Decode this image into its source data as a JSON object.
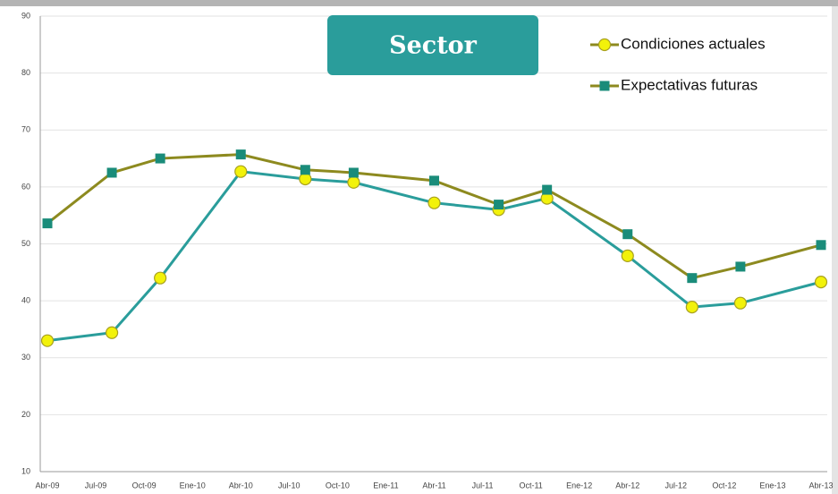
{
  "chart_data": {
    "type": "line",
    "title": "Sector",
    "categories": [
      "Abr-09",
      null,
      null,
      "Jul-09",
      null,
      null,
      "Oct-09",
      null,
      null,
      "Ene-10",
      null,
      null,
      "Abr-10",
      null,
      null,
      "Jul-10",
      null,
      null,
      "Oct-10",
      null,
      null,
      "Ene-11",
      null,
      null,
      "Abr-11",
      null,
      null,
      "Jul-11",
      null,
      null,
      "Oct-11",
      null,
      null,
      "Ene-12",
      null,
      null,
      "Abr-12",
      null,
      null,
      "Jul-12",
      null,
      null,
      "Oct-12",
      null,
      null,
      "Ene-13",
      null,
      null,
      "Abr-13"
    ],
    "series": [
      {
        "name": "Condiciones actuales",
        "color": "#2a9d9b",
        "marker": "circle",
        "marker_color": "#f2f20a",
        "values": [
          33,
          null,
          null,
          null,
          34.4,
          null,
          null,
          44,
          null,
          null,
          null,
          null,
          62.7,
          null,
          null,
          null,
          61.4,
          null,
          null,
          60.8,
          null,
          null,
          null,
          null,
          57.2,
          null,
          null,
          null,
          56,
          null,
          null,
          58,
          null,
          null,
          null,
          null,
          47.9,
          null,
          null,
          null,
          38.9,
          null,
          null,
          39.6,
          null,
          null,
          null,
          null,
          43.3
        ]
      },
      {
        "name": "Expectativas futuras",
        "color": "#8d8a1f",
        "marker": "square",
        "marker_color": "#1a8c7a",
        "values": [
          53.6,
          null,
          null,
          null,
          62.5,
          null,
          null,
          65,
          null,
          null,
          null,
          null,
          65.7,
          null,
          null,
          null,
          63,
          null,
          null,
          62.5,
          null,
          null,
          null,
          null,
          61.1,
          null,
          null,
          null,
          56.9,
          null,
          null,
          59.5,
          null,
          null,
          null,
          null,
          51.7,
          null,
          null,
          null,
          44,
          null,
          null,
          46,
          null,
          null,
          null,
          null,
          49.8
        ]
      }
    ],
    "ylim": [
      10,
      90
    ],
    "yticks": [
      10,
      20,
      30,
      40,
      50,
      60,
      70,
      80,
      90
    ],
    "grid": true,
    "legend": "upper right"
  }
}
